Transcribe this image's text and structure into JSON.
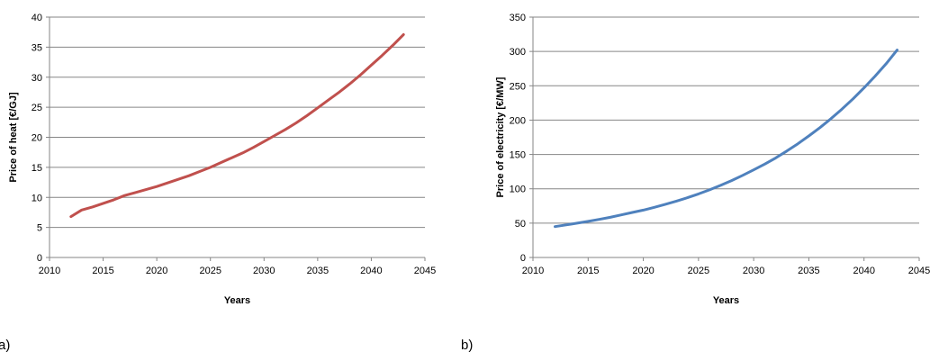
{
  "chart_data": [
    {
      "type": "line",
      "panel_label": "a)",
      "xlabel": "Years",
      "ylabel": "Price of heat [€/GJ]",
      "xlim": [
        2010,
        2045
      ],
      "ylim": [
        0,
        40
      ],
      "x_ticks": [
        "2010",
        "2015",
        "2020",
        "2025",
        "2030",
        "2035",
        "2040",
        "2045"
      ],
      "y_ticks": [
        "0",
        "5",
        "10",
        "15",
        "20",
        "25",
        "30",
        "35",
        "40"
      ],
      "grid": "horizontal",
      "series": [
        {
          "color": "#c0504d",
          "x": [
            2012,
            2013,
            2014,
            2015,
            2016,
            2017,
            2018,
            2019,
            2020,
            2021,
            2022,
            2023,
            2024,
            2025,
            2026,
            2027,
            2028,
            2029,
            2030,
            2031,
            2032,
            2033,
            2034,
            2035,
            2036,
            2037,
            2038,
            2039,
            2040,
            2041,
            2042,
            2043
          ],
          "y": [
            6.8,
            7.9,
            8.4,
            9.0,
            9.6,
            10.3,
            10.8,
            11.3,
            11.8,
            12.4,
            13.0,
            13.6,
            14.3,
            15.0,
            15.8,
            16.6,
            17.4,
            18.3,
            19.3,
            20.3,
            21.3,
            22.4,
            23.6,
            24.9,
            26.2,
            27.5,
            28.9,
            30.4,
            32.0,
            33.6,
            35.3,
            37.1
          ]
        }
      ]
    },
    {
      "type": "line",
      "panel_label": "b)",
      "xlabel": "Years",
      "ylabel": "Price of electricity [€/MW]",
      "xlim": [
        2010,
        2045
      ],
      "ylim": [
        0,
        350
      ],
      "x_ticks": [
        "2010",
        "2015",
        "2020",
        "2025",
        "2030",
        "2035",
        "2040",
        "2045"
      ],
      "y_ticks": [
        "0",
        "50",
        "100",
        "150",
        "200",
        "250",
        "300",
        "350"
      ],
      "grid": "horizontal",
      "series": [
        {
          "color": "#4f81bd",
          "x": [
            2012,
            2013,
            2014,
            2015,
            2016,
            2017,
            2018,
            2019,
            2020,
            2021,
            2022,
            2023,
            2024,
            2025,
            2026,
            2027,
            2028,
            2029,
            2030,
            2031,
            2032,
            2033,
            2034,
            2035,
            2036,
            2037,
            2038,
            2039,
            2040,
            2041,
            2042,
            2043
          ],
          "y": [
            45,
            47.5,
            50,
            52.5,
            55.5,
            58.5,
            62,
            65.5,
            69,
            73,
            77.5,
            82,
            87,
            92.5,
            98.5,
            105,
            112,
            119.5,
            127.5,
            136,
            145,
            155,
            165.5,
            177,
            189,
            202,
            216,
            231,
            247,
            264,
            282,
            302
          ]
        }
      ]
    }
  ]
}
